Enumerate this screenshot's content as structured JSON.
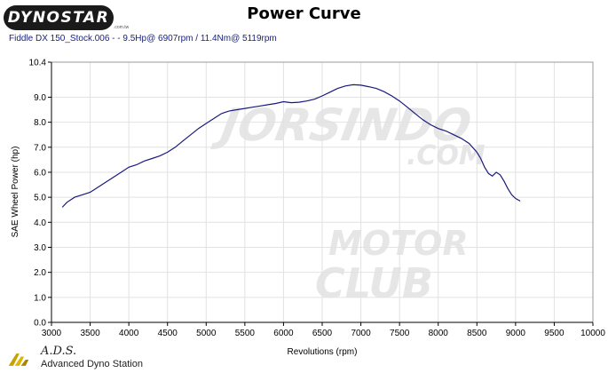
{
  "header": {
    "logo_text": "DYNOSTAR",
    "logo_sub": ".com.tw",
    "title": "Power Curve",
    "run_info": "Fiddle DX 150_Stock.006 -  - 9.5Hp@ 6907rpm / 11.4Nm@ 5119rpm"
  },
  "watermark": {
    "line1": "JORSINDO",
    "line2": ".COM",
    "line3": "MOTOR",
    "line4": "CLUB"
  },
  "footer": {
    "ads_title": "A.D.S.",
    "ads_subtitle": "Advanced Dyno Station"
  },
  "colors": {
    "line": "#1a1a7e",
    "grid": "#e2e2e2",
    "axis": "#000000"
  },
  "chart_data": {
    "type": "line",
    "title": "Power Curve",
    "xlabel": "Revolutions (rpm)",
    "ylabel": "SAE Wheel Power (hp)",
    "xlim": [
      3000,
      10000
    ],
    "ylim": [
      0,
      10.4
    ],
    "xticks": [
      "3000",
      "3500",
      "4000",
      "4500",
      "5000",
      "5500",
      "6000",
      "6500",
      "7000",
      "7500",
      "8000",
      "8500",
      "9000",
      "9500",
      "10000"
    ],
    "yticks": [
      "0.0",
      "1.0",
      "2.0",
      "3.0",
      "4.0",
      "5.0",
      "6.0",
      "7.0",
      "8.0",
      "9.0",
      "10.4"
    ],
    "ytick_values": [
      0,
      1,
      2,
      3,
      4,
      5,
      6,
      7,
      8,
      9,
      10.4
    ],
    "grid": true,
    "series": [
      {
        "x": [
          3140,
          3200,
          3300,
          3400,
          3500,
          3600,
          3700,
          3800,
          3900,
          4000,
          4100,
          4200,
          4300,
          4400,
          4500,
          4600,
          4700,
          4800,
          4900,
          5000,
          5100,
          5200,
          5300,
          5400,
          5500,
          5600,
          5700,
          5800,
          5900,
          6000,
          6100,
          6200,
          6300,
          6400,
          6500,
          6600,
          6700,
          6800,
          6900,
          7000,
          7100,
          7200,
          7300,
          7400,
          7500,
          7600,
          7700,
          7800,
          7900,
          8000,
          8100,
          8200,
          8300,
          8400,
          8500,
          8550,
          8600,
          8650,
          8700,
          8750,
          8800,
          8850,
          8900,
          8950,
          9000,
          9060
        ],
        "y": [
          4.6,
          4.8,
          5.0,
          5.1,
          5.2,
          5.4,
          5.6,
          5.8,
          6.0,
          6.2,
          6.3,
          6.45,
          6.55,
          6.65,
          6.8,
          7.0,
          7.25,
          7.5,
          7.75,
          7.95,
          8.15,
          8.35,
          8.45,
          8.5,
          8.55,
          8.6,
          8.65,
          8.7,
          8.75,
          8.82,
          8.78,
          8.8,
          8.85,
          8.92,
          9.05,
          9.2,
          9.35,
          9.45,
          9.5,
          9.48,
          9.42,
          9.35,
          9.22,
          9.05,
          8.85,
          8.6,
          8.35,
          8.1,
          7.9,
          7.75,
          7.65,
          7.5,
          7.35,
          7.15,
          6.8,
          6.55,
          6.2,
          5.95,
          5.85,
          6.0,
          5.9,
          5.65,
          5.35,
          5.1,
          4.95,
          4.85
        ]
      }
    ]
  }
}
